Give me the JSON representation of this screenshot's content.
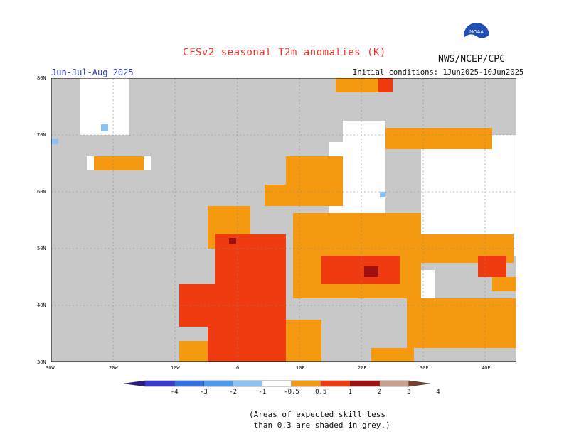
{
  "title": "CFSv2 seasonal T2m anomalies (K)",
  "agency": "NWS/NCEP/CPC",
  "logo_text": "NOAA",
  "season": "Jun-Jul-Aug 2025",
  "initial_conditions": "Initial conditions: 1Jun2025-10Jun2025",
  "lat_labels": [
    "80N",
    "70N",
    "60N",
    "50N",
    "40N",
    "30N"
  ],
  "lon_labels": [
    "30W",
    "20W",
    "10W",
    "0",
    "10E",
    "20E",
    "30E",
    "40E"
  ],
  "map_extent": {
    "lon": [
      -30,
      45
    ],
    "lat": [
      30,
      80
    ]
  },
  "colors": {
    "land_low_skill": "#c8c8c8",
    "ocean": "#c8c8c8",
    "neutral": "#ffffff"
  },
  "legend": {
    "ticks": [
      "-4",
      "-3",
      "-2",
      "-1",
      "-0.5",
      "0.5",
      "1",
      "2",
      "3",
      "4"
    ],
    "bins": [
      {
        "range": "<-4",
        "color": "#2a1a8a"
      },
      {
        "range": "-4..-3",
        "color": "#3a3ad0"
      },
      {
        "range": "-3..-2",
        "color": "#3370e0"
      },
      {
        "range": "-2..-1",
        "color": "#4a9aee"
      },
      {
        "range": "-1..-0.5",
        "color": "#8ac2f5"
      },
      {
        "range": "-0.5..0.5",
        "color": "#ffffff"
      },
      {
        "range": "0.5..1",
        "color": "#f59a10"
      },
      {
        "range": "1..2",
        "color": "#f03a10"
      },
      {
        "range": "2..3",
        "color": "#a01010"
      },
      {
        "range": "3..4",
        "color": "#c8a090"
      },
      {
        "range": ">4",
        "color": "#7a4030"
      }
    ]
  },
  "note": "(Areas of expected skill less\n than 0.3 are shaded in grey.)"
}
